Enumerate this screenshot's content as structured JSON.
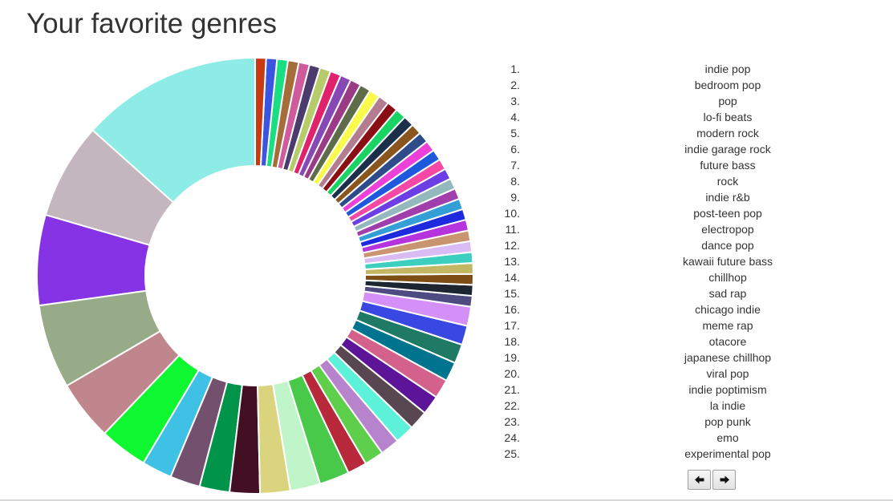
{
  "page": {
    "title": "Your favorite genres"
  },
  "genre_list": [
    {
      "rank": "1.",
      "name": "indie pop"
    },
    {
      "rank": "2.",
      "name": "bedroom pop"
    },
    {
      "rank": "3.",
      "name": "pop"
    },
    {
      "rank": "4.",
      "name": "lo-fi beats"
    },
    {
      "rank": "5.",
      "name": "modern rock"
    },
    {
      "rank": "6.",
      "name": "indie garage rock"
    },
    {
      "rank": "7.",
      "name": "future bass"
    },
    {
      "rank": "8.",
      "name": "rock"
    },
    {
      "rank": "9.",
      "name": "indie r&b"
    },
    {
      "rank": "10.",
      "name": "post-teen pop"
    },
    {
      "rank": "11.",
      "name": "electropop"
    },
    {
      "rank": "12.",
      "name": "dance pop"
    },
    {
      "rank": "13.",
      "name": "kawaii future bass"
    },
    {
      "rank": "14.",
      "name": "chillhop"
    },
    {
      "rank": "15.",
      "name": "sad rap"
    },
    {
      "rank": "16.",
      "name": "chicago indie"
    },
    {
      "rank": "17.",
      "name": "meme rap"
    },
    {
      "rank": "18.",
      "name": "otacore"
    },
    {
      "rank": "19.",
      "name": "japanese chillhop"
    },
    {
      "rank": "20.",
      "name": "viral pop"
    },
    {
      "rank": "21.",
      "name": "indie poptimism"
    },
    {
      "rank": "22.",
      "name": "la indie"
    },
    {
      "rank": "23.",
      "name": "pop punk"
    },
    {
      "rank": "24.",
      "name": "emo"
    },
    {
      "rank": "25.",
      "name": "experimental pop"
    }
  ],
  "pager": {
    "prev_icon": "arrow-left-icon",
    "next_icon": "arrow-right-icon"
  },
  "chart_data": {
    "type": "pie",
    "style": "donut",
    "title": "",
    "slices": [
      {
        "value": 15.0,
        "color": "#8eece6"
      },
      {
        "value": 8.0,
        "color": "#c4b6be"
      },
      {
        "value": 7.5,
        "color": "#8633e6"
      },
      {
        "value": 7.0,
        "color": "#98ab88"
      },
      {
        "value": 5.0,
        "color": "#c0868e"
      },
      {
        "value": 4.0,
        "color": "#0ef832"
      },
      {
        "value": 2.5,
        "color": "#3ec1e4"
      },
      {
        "value": 2.5,
        "color": "#72506e"
      },
      {
        "value": 2.5,
        "color": "#00934a"
      },
      {
        "value": 2.5,
        "color": "#421022"
      },
      {
        "value": 2.5,
        "color": "#dad47e"
      },
      {
        "value": 2.5,
        "color": "#c0f5ca"
      },
      {
        "value": 2.5,
        "color": "#48c949"
      },
      {
        "value": 1.6,
        "color": "#b82a3b"
      },
      {
        "value": 1.6,
        "color": "#5ecf4a"
      },
      {
        "value": 1.6,
        "color": "#b783cd"
      },
      {
        "value": 1.6,
        "color": "#5cf1d8"
      },
      {
        "value": 1.6,
        "color": "#584650"
      },
      {
        "value": 1.6,
        "color": "#5c1598"
      },
      {
        "value": 1.6,
        "color": "#d4608c"
      },
      {
        "value": 1.6,
        "color": "#00738f"
      },
      {
        "value": 1.6,
        "color": "#1e7a64"
      },
      {
        "value": 1.6,
        "color": "#3948e3"
      },
      {
        "value": 1.6,
        "color": "#d590f7"
      },
      {
        "value": 0.9,
        "color": "#4d4b82"
      },
      {
        "value": 0.9,
        "color": "#1c2530"
      },
      {
        "value": 0.9,
        "color": "#7d4f16"
      },
      {
        "value": 0.9,
        "color": "#c4b763"
      },
      {
        "value": 0.9,
        "color": "#3ccfbf"
      },
      {
        "value": 0.9,
        "color": "#dabcf5"
      },
      {
        "value": 0.9,
        "color": "#c89570"
      },
      {
        "value": 0.9,
        "color": "#b634dd"
      },
      {
        "value": 0.9,
        "color": "#1f2adf"
      },
      {
        "value": 0.9,
        "color": "#349fd6"
      },
      {
        "value": 0.9,
        "color": "#a03fac"
      },
      {
        "value": 0.9,
        "color": "#94b9bc"
      },
      {
        "value": 0.9,
        "color": "#6d3ee6"
      },
      {
        "value": 0.9,
        "color": "#f44aa5"
      },
      {
        "value": 0.9,
        "color": "#1e58dd"
      },
      {
        "value": 0.9,
        "color": "#ec40d8"
      },
      {
        "value": 0.9,
        "color": "#2f4c8a"
      },
      {
        "value": 0.9,
        "color": "#8b561e"
      },
      {
        "value": 0.9,
        "color": "#1b2e4a"
      },
      {
        "value": 0.9,
        "color": "#19d465"
      },
      {
        "value": 0.9,
        "color": "#8a0e14"
      },
      {
        "value": 0.9,
        "color": "#b47c8f"
      },
      {
        "value": 0.9,
        "color": "#f9fa4a"
      },
      {
        "value": 0.9,
        "color": "#5f6c4a"
      },
      {
        "value": 0.9,
        "color": "#9b3a85"
      },
      {
        "value": 0.9,
        "color": "#8648b4"
      },
      {
        "value": 0.9,
        "color": "#e0216b"
      },
      {
        "value": 0.9,
        "color": "#b6cb6a"
      },
      {
        "value": 0.9,
        "color": "#4a3d6e"
      },
      {
        "value": 0.9,
        "color": "#d05b9c"
      },
      {
        "value": 0.9,
        "color": "#a46d39"
      },
      {
        "value": 0.9,
        "color": "#19de82"
      },
      {
        "value": 0.9,
        "color": "#3a55e0"
      },
      {
        "value": 0.9,
        "color": "#c83b12"
      }
    ]
  }
}
